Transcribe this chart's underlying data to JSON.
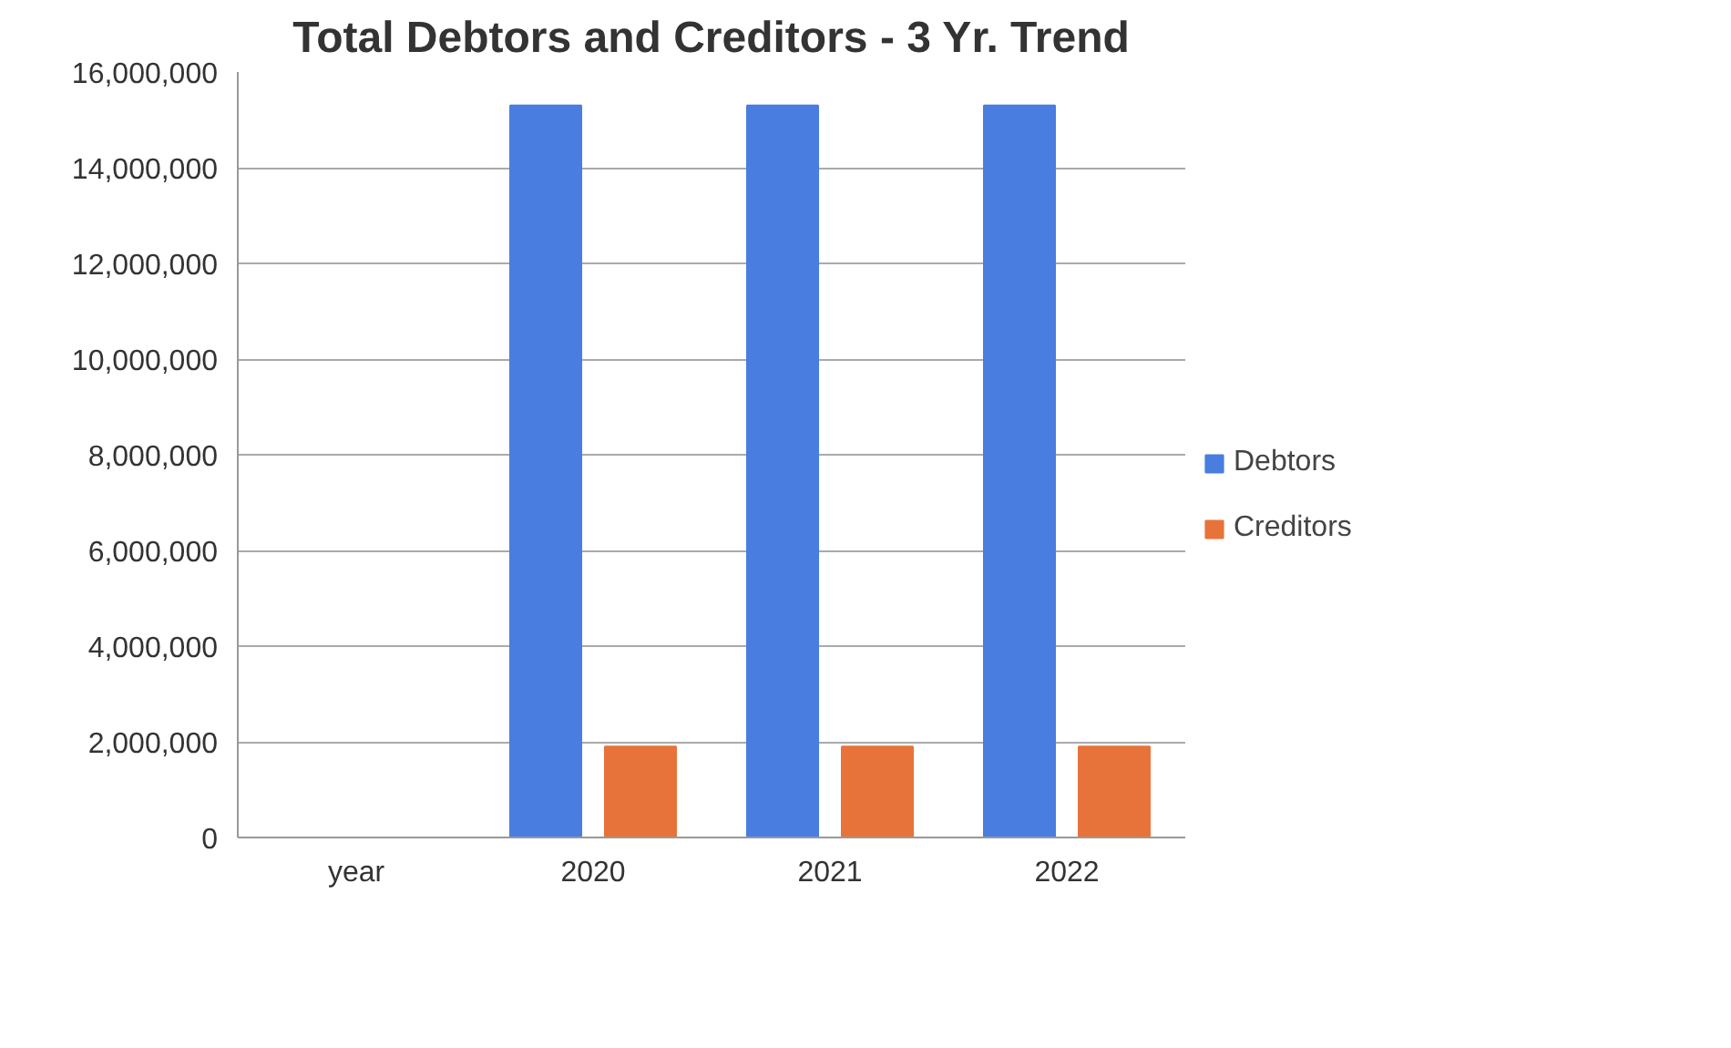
{
  "chart_data": {
    "type": "bar",
    "title": "Total Debtors and Creditors - 3 Yr. Trend",
    "categories": [
      "year",
      "2020",
      "2021",
      "2022"
    ],
    "series": [
      {
        "name": "Debtors",
        "color": "#4a7de0",
        "values": [
          null,
          15300000,
          15300000,
          15300000
        ]
      },
      {
        "name": "Creditors",
        "color": "#e8733a",
        "values": [
          null,
          1900000,
          1900000,
          1900000
        ]
      }
    ],
    "ylim": [
      0,
      16000000
    ],
    "yticks": [
      {
        "value": 0,
        "label": "0"
      },
      {
        "value": 2000000,
        "label": "2,000,000"
      },
      {
        "value": 4000000,
        "label": "4,000,000"
      },
      {
        "value": 6000000,
        "label": "6,000,000"
      },
      {
        "value": 8000000,
        "label": "8,000,000"
      },
      {
        "value": 10000000,
        "label": "10,000,000"
      },
      {
        "value": 12000000,
        "label": "12,000,000"
      },
      {
        "value": 14000000,
        "label": "14,000,000"
      },
      {
        "value": 16000000,
        "label": "16,000,000"
      }
    ],
    "grid": "y",
    "legend": "right"
  }
}
